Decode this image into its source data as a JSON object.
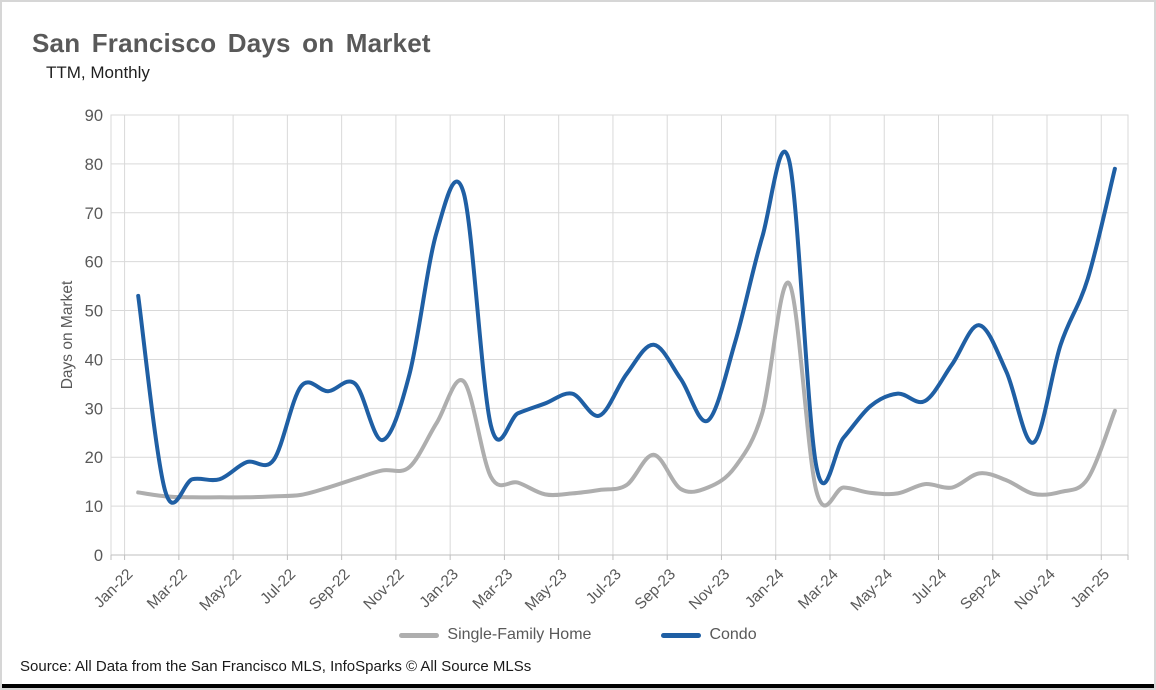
{
  "page": {
    "title": "San Francisco Days on Market",
    "subtitle": "TTM, Monthly",
    "source": "Source: All Data from the San Francisco MLS, InfoSparks © All Source MLSs"
  },
  "colors": {
    "single_family_line": "#aeaeae",
    "condo_line": "#1f5fa4",
    "title_text": "#595959",
    "axis_text": "#595959",
    "gridline": "#d9d9d9",
    "axis_line": "#bfbfbf"
  },
  "chart_data": {
    "type": "line",
    "title": "San Francisco Days on Market",
    "subtitle": "TTM, Monthly",
    "xlabel": "",
    "ylabel": "Days on Market",
    "ylim": [
      0,
      90
    ],
    "ytick_step": 10,
    "yticks": [
      0,
      10,
      20,
      30,
      40,
      50,
      60,
      70,
      80,
      90
    ],
    "grid": true,
    "smooth": true,
    "legend_position": "bottom",
    "xtick_label_every": 2,
    "x": [
      "Jan-22",
      "Feb-22",
      "Mar-22",
      "Apr-22",
      "May-22",
      "Jun-22",
      "Jul-22",
      "Aug-22",
      "Sep-22",
      "Oct-22",
      "Nov-22",
      "Dec-22",
      "Jan-23",
      "Feb-23",
      "Mar-23",
      "Apr-23",
      "May-23",
      "Jun-23",
      "Jul-23",
      "Aug-23",
      "Sep-23",
      "Oct-23",
      "Nov-23",
      "Dec-23",
      "Jan-24",
      "Feb-24",
      "Mar-24",
      "Apr-24",
      "May-24",
      "Jun-24",
      "Jul-24",
      "Aug-24",
      "Sep-24",
      "Oct-24",
      "Nov-24",
      "Dec-24",
      "Jan-25"
    ],
    "series": [
      {
        "name": "Single-Family Home",
        "color": "#aeaeae",
        "values": [
          12.8,
          12,
          11.8,
          11.8,
          11.8,
          12,
          12.3,
          13.8,
          15.6,
          17.3,
          18,
          27,
          35.5,
          16,
          14.8,
          12.4,
          12.6,
          13.3,
          14.3,
          20.5,
          13.5,
          13.8,
          18,
          29,
          55.5,
          13,
          13.8,
          12.7,
          12.6,
          14.5,
          13.8,
          16.7,
          15.3,
          12.5,
          12.9,
          15.6,
          29.5
        ]
      },
      {
        "name": "Condo",
        "color": "#1f5fa4",
        "values": [
          53,
          13,
          15.5,
          15.5,
          19,
          19.5,
          34.5,
          33.5,
          35,
          23.5,
          37,
          66,
          74,
          26.5,
          29,
          31,
          33,
          28.5,
          37,
          43,
          36,
          27.5,
          43.5,
          65,
          80.5,
          18,
          24,
          30.5,
          33,
          31.5,
          39,
          47,
          37.5,
          23,
          43,
          56.5,
          79
        ]
      }
    ]
  }
}
